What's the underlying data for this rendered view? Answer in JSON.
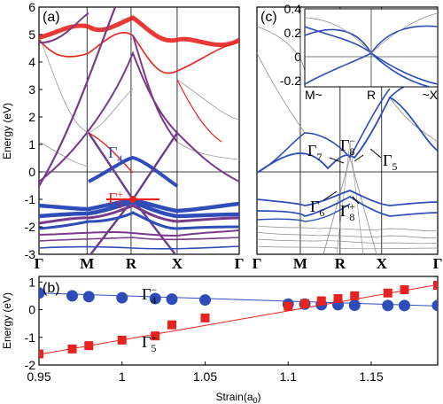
{
  "chart_data": [
    {
      "panel": "(a)",
      "type": "band-structure",
      "ylabel": "Energy (eV)",
      "ylim": [
        -3,
        6
      ],
      "yticks": [
        "6",
        "5",
        "4",
        "3",
        "2",
        "1",
        "0",
        "-1",
        "-2",
        "-3"
      ],
      "kpoints": [
        "Γ",
        "M",
        "R",
        "X",
        "Γ"
      ],
      "colors": {
        "red": "#e8231f",
        "blue": "#2e4db8",
        "gray": "#8a8a8a"
      },
      "annotations": [
        {
          "base": "Γ",
          "sub": "4",
          "sup": "",
          "color": "#2e4db8"
        },
        {
          "base": "Γ",
          "sub": "5",
          "sup": "+",
          "color": "#e8231f"
        }
      ]
    },
    {
      "panel": "(c)",
      "type": "band-structure",
      "ylim": [
        -3,
        6
      ],
      "kpoints": [
        "Γ",
        "M",
        "R",
        "X",
        "Γ"
      ],
      "annotations": [
        {
          "base": "Γ",
          "sub": "7",
          "sup": ""
        },
        {
          "base": "Γ",
          "sub": "8",
          "sup": "−"
        },
        {
          "base": "Γ",
          "sub": "5",
          "sup": ""
        },
        {
          "base": "Γ",
          "sub": "6",
          "sup": ""
        },
        {
          "base": "Γ",
          "sub": "8",
          "sup": "+"
        }
      ],
      "inset": {
        "yticks": [
          "0.4",
          "0.2",
          "0",
          "-0.2"
        ],
        "kpoints": [
          "M~",
          "R",
          "~X"
        ]
      }
    },
    {
      "panel": "(b)",
      "type": "scatter",
      "xlabel": "Strain(a",
      "xlabel_sub": "0",
      "xlabel_close": ")",
      "ylabel": "Energy (eV)",
      "xlim": [
        0.95,
        1.19
      ],
      "ylim": [
        -2,
        1.2
      ],
      "xticks": [
        "0.95",
        "1",
        "1.05",
        "1.1",
        "1.15"
      ],
      "xtick_values": [
        0.95,
        1.0,
        1.05,
        1.1,
        1.15
      ],
      "yticks": [
        "1",
        "0",
        "-1",
        "-2"
      ],
      "ytick_values": [
        1,
        0,
        -1,
        -2
      ],
      "series": [
        {
          "name_base": "Γ",
          "name_sub": "4",
          "name_sup": "−",
          "color": "#2e4db8",
          "marker": "circle",
          "x": [
            0.95,
            0.97,
            0.98,
            1.0,
            1.02,
            1.03,
            1.05,
            1.1,
            1.11,
            1.12,
            1.13,
            1.14,
            1.16,
            1.17,
            1.19
          ],
          "y": [
            0.6,
            0.5,
            0.47,
            0.43,
            0.4,
            0.38,
            0.35,
            0.2,
            0.2,
            0.18,
            0.18,
            0.16,
            0.15,
            0.15,
            0.15
          ],
          "fit": [
            [
              0.95,
              0.6
            ],
            [
              1.19,
              0.13
            ]
          ]
        },
        {
          "name_base": "Γ",
          "name_sub": "5",
          "name_sup": "+",
          "color": "#e8231f",
          "marker": "square",
          "x": [
            0.95,
            0.97,
            0.98,
            1.0,
            1.02,
            1.03,
            1.05,
            1.1,
            1.11,
            1.12,
            1.13,
            1.14,
            1.16,
            1.17,
            1.19
          ],
          "y": [
            -1.6,
            -1.42,
            -1.3,
            -1.1,
            -0.95,
            -0.55,
            -0.3,
            0.12,
            0.22,
            0.32,
            0.4,
            0.5,
            0.6,
            0.72,
            0.88
          ],
          "fit": [
            [
              0.95,
              -1.62
            ],
            [
              1.19,
              0.9
            ]
          ]
        }
      ]
    }
  ]
}
